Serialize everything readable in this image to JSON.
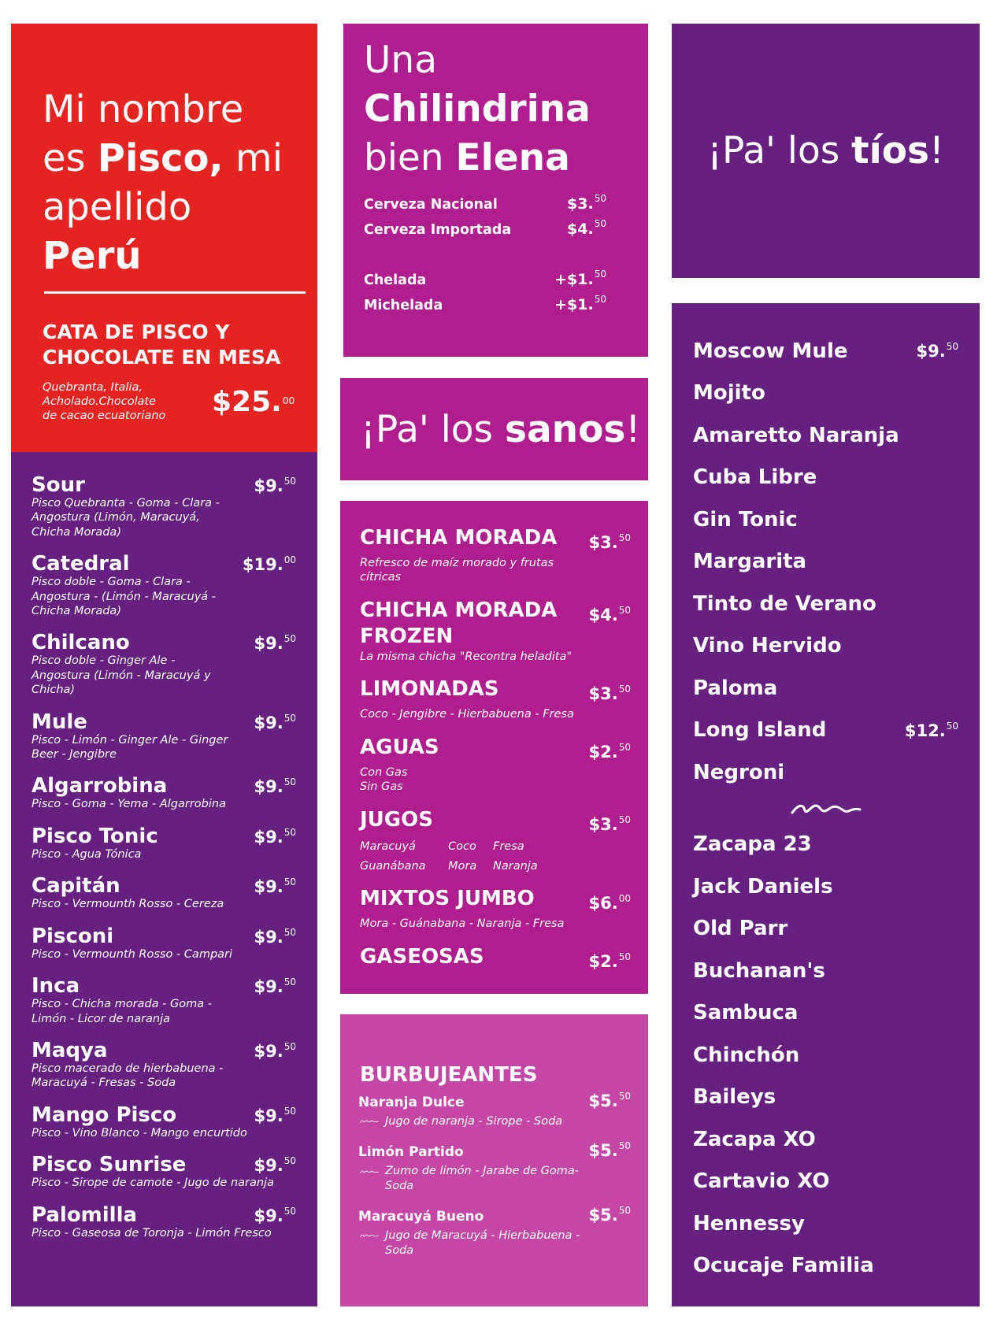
{
  "left": {
    "title_lines": [
      [
        {
          "text": "Mi nombre"
        }
      ],
      [
        {
          "text": "es "
        },
        {
          "text": "Pisco,",
          "bold": true
        },
        {
          "text": " mi"
        }
      ],
      [
        {
          "text": "apellido"
        }
      ],
      [
        {
          "text": "Perú",
          "bold": true
        }
      ]
    ],
    "tasting": {
      "name": "CATA DE PISCO Y CHOCOLATE EN MESA",
      "desc_lines": [
        "Quebranta, Italia,",
        "Acholado.Chocolate",
        "de cacao ecuatoriano"
      ],
      "price": {
        "main": "$25.",
        "cents": "00"
      }
    },
    "cocktails": [
      {
        "name": "Sour",
        "price": {
          "main": "$9.",
          "cents": "50"
        },
        "desc_lines": [
          "Pisco Quebranta - Goma - Clara -",
          "Angostura (Limón, Maracuyá,",
          "Chicha Morada)"
        ]
      },
      {
        "name": "Catedral",
        "price": {
          "main": "$19.",
          "cents": "00"
        },
        "desc_lines": [
          "Pisco doble - Goma - Clara -",
          "Angostura - (Limón - Maracuyá -",
          "Chicha Morada)"
        ]
      },
      {
        "name": "Chilcano",
        "price": {
          "main": "$9.",
          "cents": "50"
        },
        "desc_lines": [
          "Pisco doble - Ginger Ale -",
          "Angostura (Limón - Maracuyá y",
          "Chicha)"
        ]
      },
      {
        "name": "Mule",
        "price": {
          "main": "$9.",
          "cents": "50"
        },
        "desc_lines": [
          "Pisco - Limón - Ginger Ale - Ginger",
          "Beer - Jengibre"
        ]
      },
      {
        "name": "Algarrobina",
        "price": {
          "main": "$9.",
          "cents": "50"
        },
        "desc_lines": [
          "Pisco - Goma - Yema - Algarrobina"
        ]
      },
      {
        "name": "Pisco Tonic",
        "price": {
          "main": "$9.",
          "cents": "50"
        },
        "desc_lines": [
          "Pisco - Agua Tónica"
        ]
      },
      {
        "name": "Capitán",
        "price": {
          "main": "$9.",
          "cents": "50"
        },
        "desc_lines": [
          "Pisco - Vermounth Rosso - Cereza"
        ]
      },
      {
        "name": "Pisconi",
        "price": {
          "main": "$9.",
          "cents": "50"
        },
        "desc_lines": [
          "Pisco - Vermounth Rosso - Campari"
        ]
      },
      {
        "name": "Inca",
        "price": {
          "main": "$9.",
          "cents": "50"
        },
        "desc_lines": [
          "Pisco - Chicha morada - Goma -",
          "Limón - Licor de naranja"
        ]
      },
      {
        "name": "Maqya",
        "price": {
          "main": "$9.",
          "cents": "50"
        },
        "desc_lines": [
          "Pisco macerado de hierbabuena -",
          "Maracuyá - Fresas - Soda"
        ]
      },
      {
        "name": "Mango Pisco",
        "price": {
          "main": "$9.",
          "cents": "50"
        },
        "desc_lines": [
          "Pisco - Vino Blanco - Mango encurtido"
        ]
      },
      {
        "name": "Pisco Sunrise",
        "price": {
          "main": "$9.",
          "cents": "50"
        },
        "desc_lines": [
          "Pisco - Sirope de camote - Jugo de naranja"
        ]
      },
      {
        "name": "Palomilla",
        "price": {
          "main": "$9.",
          "cents": "50"
        },
        "desc_lines": [
          "Pisco - Gaseosa de Toronja - Limón Fresco"
        ]
      }
    ]
  },
  "beers": {
    "title_lines": [
      [
        {
          "text": "Una"
        }
      ],
      [
        {
          "text": "Chilindrina",
          "bold": true
        }
      ],
      [
        {
          "text": "bien "
        },
        {
          "text": "Elena",
          "bold": true
        }
      ]
    ],
    "groups": [
      [
        {
          "name": "Cerveza Nacional",
          "price": {
            "main": "$3.",
            "cents": "50"
          }
        },
        {
          "name": "Cerveza Importada",
          "price": {
            "main": "$4.",
            "cents": "50"
          }
        }
      ],
      [
        {
          "name": "Chelada",
          "price": {
            "main": "+$1.",
            "cents": "50"
          }
        },
        {
          "name": "Michelada",
          "price": {
            "main": "+$1.",
            "cents": "50"
          }
        }
      ]
    ]
  },
  "sanos": {
    "title": [
      {
        "text": "¡Pa' los "
      },
      {
        "text": "sanos",
        "bold": true
      },
      {
        "text": "!"
      }
    ],
    "items": [
      {
        "name": "CHICHA MORADA",
        "price": {
          "main": "$3.",
          "cents": "50"
        },
        "desc_lines": [
          "Refresco de maíz morado y frutas",
          "cítricas"
        ]
      },
      {
        "name": "CHICHA MORADA FROZEN",
        "price": {
          "main": "$4.",
          "cents": "50"
        },
        "desc_lines": [
          "La misma chicha \"Recontra heladita\""
        ]
      },
      {
        "name": "LIMONADAS",
        "price": {
          "main": "$3.",
          "cents": "50"
        },
        "desc_lines": [
          "Coco - Jengibre - Hierbabuena - Fresa"
        ]
      },
      {
        "name": "AGUAS",
        "price": {
          "main": "$2.",
          "cents": "50"
        },
        "desc_lines": [
          "Con Gas",
          "Sin Gas"
        ]
      },
      {
        "name": "JUGOS",
        "price": {
          "main": "$3.",
          "cents": "50"
        },
        "desc_grid": [
          [
            "Maracuyá",
            "Coco",
            "Fresa"
          ],
          [
            "Guanábana",
            "Mora",
            "Naranja"
          ]
        ]
      },
      {
        "name": "MIXTOS JUMBO",
        "price": {
          "main": "$6.",
          "cents": "00"
        },
        "desc_lines": [
          "Mora - Guánabana - Naranja - Fresa"
        ]
      },
      {
        "name": "GASEOSAS",
        "price": {
          "main": "$2.",
          "cents": "50"
        }
      }
    ],
    "sparkling": {
      "title": "BURBUJEANTES",
      "items": [
        {
          "name": "Naranja Dulce",
          "price": {
            "main": "$5.",
            "cents": "50"
          },
          "desc_lines": [
            "Jugo de naranja - Sirope - Soda"
          ]
        },
        {
          "name": "Limón Partido",
          "price": {
            "main": "$5.",
            "cents": "50"
          },
          "desc_lines": [
            "Zumo de limón - Jarabe de Goma-",
            "Soda"
          ]
        },
        {
          "name": "Maracuyá Bueno",
          "price": {
            "main": "$5.",
            "cents": "50"
          },
          "desc_lines": [
            "Jugo de Maracuyá - Hierbabuena -",
            "Soda"
          ]
        }
      ]
    }
  },
  "tios": {
    "title": [
      {
        "text": "¡Pa' los "
      },
      {
        "text": "tíos",
        "bold": true
      },
      {
        "text": "!"
      }
    ],
    "groups": [
      [
        {
          "name": "Moscow Mule",
          "price": {
            "main": "$9.",
            "cents": "50"
          }
        },
        {
          "name": "Mojito"
        },
        {
          "name": "Amaretto Naranja"
        },
        {
          "name": "Cuba Libre"
        },
        {
          "name": "Gin Tonic"
        },
        {
          "name": "Margarita"
        },
        {
          "name": "Tinto de Verano"
        },
        {
          "name": "Vino Hervido"
        },
        {
          "name": "Paloma"
        },
        {
          "name": "Long Island",
          "price": {
            "main": "$12.",
            "cents": "50"
          }
        },
        {
          "name": "Negroni"
        }
      ],
      [
        {
          "name": "Zacapa 23"
        },
        {
          "name": "Jack Daniels"
        },
        {
          "name": "Old Parr"
        },
        {
          "name": "Buchanan's"
        },
        {
          "name": "Sambuca"
        },
        {
          "name": "Chinchón"
        },
        {
          "name": "Baileys"
        },
        {
          "name": "Zacapa XO"
        },
        {
          "name": "Cartavio XO"
        },
        {
          "name": "Hennessy"
        },
        {
          "name": "Ocucaje Familia"
        }
      ]
    ]
  }
}
